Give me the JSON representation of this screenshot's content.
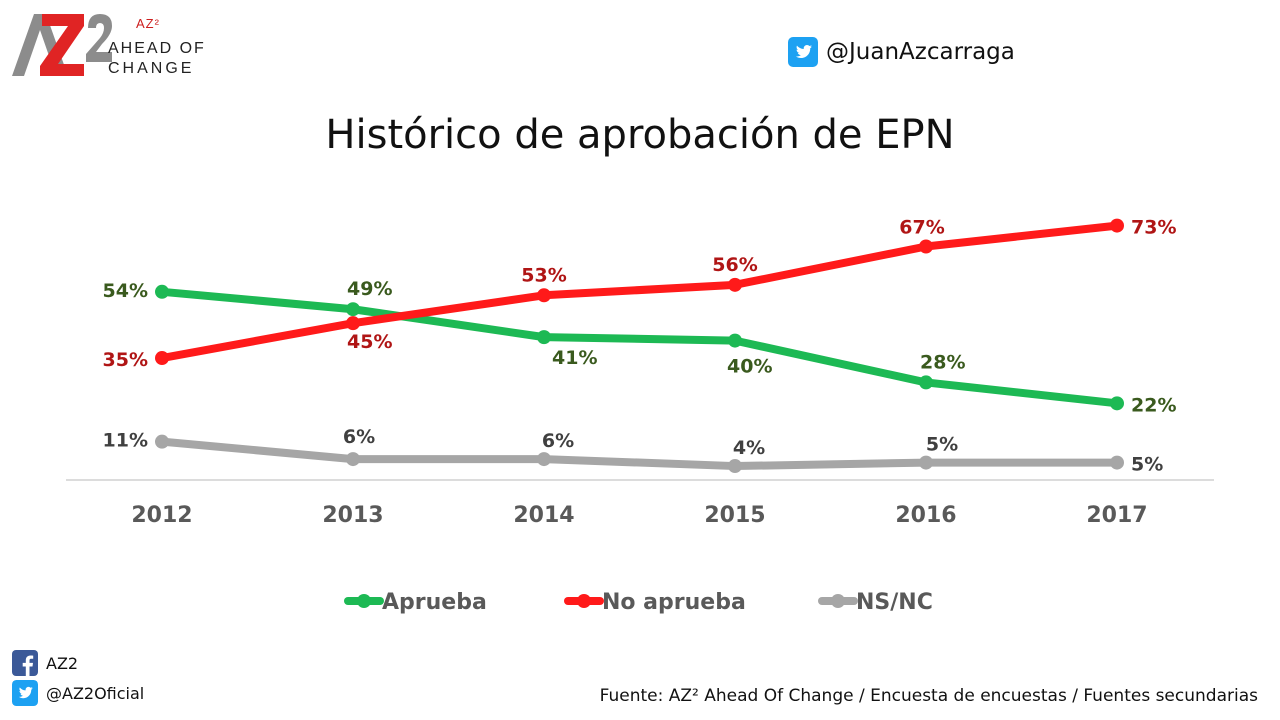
{
  "header": {
    "logo_superscript": "AZ²",
    "logo_line1": "AHEAD OF",
    "logo_line2": "CHANGE",
    "twitter_handle": "@JuanAzcarraga"
  },
  "footer": {
    "facebook_label": "AZ2",
    "twitter_label": "@AZ2Oficial",
    "source": "Fuente: AZ² Ahead Of Change / Encuesta de encuestas / Fuentes secundarias"
  },
  "icons": {
    "twitter": "twitter-bird-icon",
    "facebook": "facebook-f-icon"
  },
  "colors": {
    "twitter_blue": "#1da1f2",
    "facebook_blue": "#3b5998",
    "logo_gray": "#8c8c8c",
    "logo_red": "#e02424"
  },
  "chart_data": {
    "type": "line",
    "title": "Histórico de aprobación de EPN",
    "xlabel": "",
    "ylabel": "",
    "categories": [
      "2012",
      "2013",
      "2014",
      "2015",
      "2016",
      "2017"
    ],
    "ylim": [
      0,
      80
    ],
    "grid": false,
    "legend_position": "bottom",
    "series": [
      {
        "name": "Aprueba",
        "values": [
          54,
          49,
          41,
          40,
          28,
          22
        ],
        "labels": [
          "54%",
          "49%",
          "41%",
          "40%",
          "28%",
          "22%"
        ],
        "color": "#1db954",
        "label_color": "#3a5a1e"
      },
      {
        "name": "No aprueba",
        "values": [
          35,
          45,
          53,
          56,
          67,
          73
        ],
        "labels": [
          "35%",
          "45%",
          "53%",
          "56%",
          "67%",
          "73%"
        ],
        "color": "#ff1a1a",
        "label_color": "#b01515"
      },
      {
        "name": "NS/NC",
        "values": [
          11,
          6,
          6,
          4,
          5,
          5
        ],
        "labels": [
          "11%",
          "6%",
          "6%",
          "4%",
          "5%",
          "5%"
        ],
        "color": "#a6a6a6",
        "label_color": "#404040"
      }
    ]
  }
}
